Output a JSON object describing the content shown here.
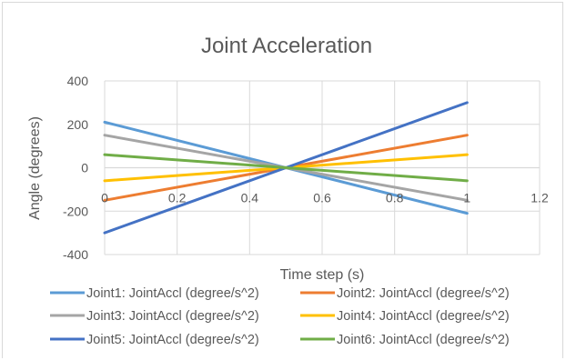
{
  "chart_data": {
    "type": "line",
    "title": "Joint Acceleration",
    "xlabel": "Time step (s)",
    "ylabel": "Angle (degrees)",
    "xlim": [
      0,
      1.2
    ],
    "ylim": [
      -400,
      400
    ],
    "x_ticks": [
      "0",
      "0.2",
      "0.4",
      "0.6",
      "0.8",
      "1",
      "1.2"
    ],
    "y_ticks": [
      "400",
      "200",
      "0",
      "-200",
      "-400"
    ],
    "x_tick_values": [
      0,
      0.2,
      0.4,
      0.6,
      0.8,
      1,
      1.2
    ],
    "y_tick_values": [
      400,
      200,
      0,
      -200,
      -400
    ],
    "grid": true,
    "legend_position": "bottom",
    "series": [
      {
        "name": "Joint1: JointAccl (degree/s^2)",
        "color": "#5b9bd5",
        "x": [
          0,
          0.5,
          1
        ],
        "y": [
          210,
          0,
          -210
        ]
      },
      {
        "name": "Joint2: JointAccl (degree/s^2)",
        "color": "#ed7d31",
        "x": [
          0,
          0.5,
          1
        ],
        "y": [
          -150,
          0,
          150
        ]
      },
      {
        "name": "Joint3: JointAccl (degree/s^2)",
        "color": "#a5a5a5",
        "x": [
          0,
          0.5,
          1
        ],
        "y": [
          150,
          0,
          -150
        ]
      },
      {
        "name": "Joint4: JointAccl (degree/s^2)",
        "color": "#ffc000",
        "x": [
          0,
          0.5,
          1
        ],
        "y": [
          -60,
          0,
          60
        ]
      },
      {
        "name": "Joint5: JointAccl (degree/s^2)",
        "color": "#4472c4",
        "x": [
          0,
          0.5,
          1
        ],
        "y": [
          -300,
          0,
          300
        ]
      },
      {
        "name": "Joint6: JointAccl (degree/s^2)",
        "color": "#70ad47",
        "x": [
          0,
          0.5,
          1
        ],
        "y": [
          60,
          0,
          -60
        ]
      }
    ]
  }
}
